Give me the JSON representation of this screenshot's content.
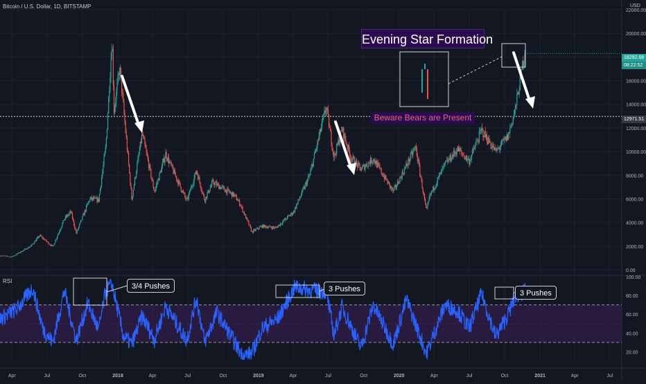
{
  "header": {
    "symbol": "Bitcoin / U.S. Dollar, 1D, BITSTAMP",
    "currency": "USD",
    "rsi_title": "RSI"
  },
  "annotations": {
    "title": "Evening Star Formation",
    "warning": "Beware Bears are Present",
    "callout_1": "3/4 Pushes",
    "callout_2": "3 Pushes",
    "callout_3": "3 Pushes"
  },
  "price_tags": {
    "last_price": "18292.68",
    "countdown": "08:22:52",
    "crosshair_price": "12971.51"
  },
  "colors": {
    "background": "#131722",
    "up_candle": "#26a69a",
    "down_candle": "#ef5350",
    "rsi_line": "#2962ff",
    "rsi_band": "#3b1f57",
    "title_bg": "#2a0d4f",
    "warning_text": "#ef5d8f",
    "last_price_tag": "#26a69a"
  },
  "chart_data": [
    {
      "type": "candlestick",
      "title": "Bitcoin / U.S. Dollar, 1D, BITSTAMP",
      "y_unit": "USD",
      "y_range": [
        0,
        22000
      ],
      "y_ticks": [
        "22000.00",
        "20000.00",
        "18000.00",
        "16000.00",
        "14000.00",
        "12000.00",
        "10000.00",
        "8000.00",
        "6000.00",
        "4000.00",
        "2000.00",
        "0.00"
      ],
      "x_ticks": [
        "Apr",
        "Jul",
        "Oct",
        "2018",
        "Apr",
        "Jul",
        "Oct",
        "2019",
        "Apr",
        "Jul",
        "Oct",
        "2020",
        "Apr",
        "Jul",
        "Oct",
        "2021",
        "Apr",
        "Jul"
      ],
      "x_tick_dates": [
        "2017-04-01",
        "2017-07-01",
        "2017-10-01",
        "2018-01-01",
        "2018-04-01",
        "2018-07-01",
        "2018-10-01",
        "2019-01-01",
        "2019-04-01",
        "2019-07-01",
        "2019-10-01",
        "2020-01-01",
        "2020-04-01",
        "2020-07-01",
        "2020-10-01",
        "2021-01-01",
        "2021-04-01",
        "2021-07-01"
      ],
      "x_start": "2017-03-01",
      "x_end": "2021-08-01",
      "last_date": "2020-11-24",
      "anchors": [
        {
          "date": "2017-03-01",
          "price": 1200
        },
        {
          "date": "2017-04-01",
          "price": 1100
        },
        {
          "date": "2017-05-20",
          "price": 2000
        },
        {
          "date": "2017-06-12",
          "price": 2900
        },
        {
          "date": "2017-07-16",
          "price": 1950
        },
        {
          "date": "2017-08-15",
          "price": 4300
        },
        {
          "date": "2017-09-01",
          "price": 4900
        },
        {
          "date": "2017-09-15",
          "price": 3100
        },
        {
          "date": "2017-10-20",
          "price": 6000
        },
        {
          "date": "2017-11-12",
          "price": 5900
        },
        {
          "date": "2017-12-01",
          "price": 10500
        },
        {
          "date": "2017-12-17",
          "price": 19700
        },
        {
          "date": "2017-12-22",
          "price": 13500
        },
        {
          "date": "2018-01-06",
          "price": 17100
        },
        {
          "date": "2018-02-06",
          "price": 6000
        },
        {
          "date": "2018-03-05",
          "price": 11500
        },
        {
          "date": "2018-04-06",
          "price": 6600
        },
        {
          "date": "2018-05-05",
          "price": 9800
        },
        {
          "date": "2018-06-29",
          "price": 5800
        },
        {
          "date": "2018-07-24",
          "price": 8400
        },
        {
          "date": "2018-08-14",
          "price": 5900
        },
        {
          "date": "2018-09-04",
          "price": 7400
        },
        {
          "date": "2018-10-30",
          "price": 6300
        },
        {
          "date": "2018-11-14",
          "price": 5600
        },
        {
          "date": "2018-12-15",
          "price": 3200
        },
        {
          "date": "2019-01-10",
          "price": 3700
        },
        {
          "date": "2019-02-15",
          "price": 3550
        },
        {
          "date": "2019-04-02",
          "price": 4900
        },
        {
          "date": "2019-05-14",
          "price": 8000
        },
        {
          "date": "2019-06-26",
          "price": 13800
        },
        {
          "date": "2019-07-16",
          "price": 9500
        },
        {
          "date": "2019-08-06",
          "price": 11900
        },
        {
          "date": "2019-08-29",
          "price": 9500
        },
        {
          "date": "2019-09-24",
          "price": 8500
        },
        {
          "date": "2019-10-26",
          "price": 9400
        },
        {
          "date": "2019-12-17",
          "price": 6600
        },
        {
          "date": "2020-02-13",
          "price": 10400
        },
        {
          "date": "2020-03-12",
          "price": 4900
        },
        {
          "date": "2020-03-20",
          "price": 6200
        },
        {
          "date": "2020-04-29",
          "price": 8900
        },
        {
          "date": "2020-06-01",
          "price": 10200
        },
        {
          "date": "2020-07-01",
          "price": 9200
        },
        {
          "date": "2020-08-02",
          "price": 11800
        },
        {
          "date": "2020-09-08",
          "price": 10000
        },
        {
          "date": "2020-10-10",
          "price": 11300
        },
        {
          "date": "2020-10-30",
          "price": 13800
        },
        {
          "date": "2020-11-24",
          "price": 18900
        }
      ]
    },
    {
      "type": "line",
      "title": "RSI",
      "y_range": [
        10,
        100
      ],
      "y_ticks": [
        "100.00",
        "80.00",
        "60.00",
        "40.00",
        "20.00"
      ],
      "band": [
        30,
        70
      ],
      "anchors": [
        {
          "date": "2017-03-01",
          "value": 55
        },
        {
          "date": "2017-04-15",
          "value": 66
        },
        {
          "date": "2017-05-25",
          "value": 88
        },
        {
          "date": "2017-06-20",
          "value": 45
        },
        {
          "date": "2017-07-16",
          "value": 30
        },
        {
          "date": "2017-08-15",
          "value": 85
        },
        {
          "date": "2017-09-15",
          "value": 32
        },
        {
          "date": "2017-10-15",
          "value": 72
        },
        {
          "date": "2017-11-12",
          "value": 43
        },
        {
          "date": "2017-12-01",
          "value": 86
        },
        {
          "date": "2017-12-17",
          "value": 92
        },
        {
          "date": "2018-01-15",
          "value": 37
        },
        {
          "date": "2018-02-06",
          "value": 28
        },
        {
          "date": "2018-03-05",
          "value": 58
        },
        {
          "date": "2018-04-06",
          "value": 33
        },
        {
          "date": "2018-05-05",
          "value": 69
        },
        {
          "date": "2018-06-29",
          "value": 32
        },
        {
          "date": "2018-07-24",
          "value": 78
        },
        {
          "date": "2018-08-14",
          "value": 30
        },
        {
          "date": "2018-09-15",
          "value": 62
        },
        {
          "date": "2018-11-20",
          "value": 16
        },
        {
          "date": "2018-12-15",
          "value": 18
        },
        {
          "date": "2019-01-10",
          "value": 45
        },
        {
          "date": "2019-02-20",
          "value": 55
        },
        {
          "date": "2019-04-05",
          "value": 89
        },
        {
          "date": "2019-05-14",
          "value": 86
        },
        {
          "date": "2019-06-26",
          "value": 84
        },
        {
          "date": "2019-07-16",
          "value": 38
        },
        {
          "date": "2019-08-06",
          "value": 68
        },
        {
          "date": "2019-09-24",
          "value": 24
        },
        {
          "date": "2019-10-26",
          "value": 70
        },
        {
          "date": "2019-12-17",
          "value": 28
        },
        {
          "date": "2020-01-20",
          "value": 76
        },
        {
          "date": "2020-03-12",
          "value": 18
        },
        {
          "date": "2020-04-29",
          "value": 70
        },
        {
          "date": "2020-06-01",
          "value": 64
        },
        {
          "date": "2020-07-01",
          "value": 45
        },
        {
          "date": "2020-08-02",
          "value": 82
        },
        {
          "date": "2020-09-08",
          "value": 36
        },
        {
          "date": "2020-10-10",
          "value": 60
        },
        {
          "date": "2020-10-30",
          "value": 80
        },
        {
          "date": "2020-11-24",
          "value": 84
        }
      ]
    }
  ]
}
